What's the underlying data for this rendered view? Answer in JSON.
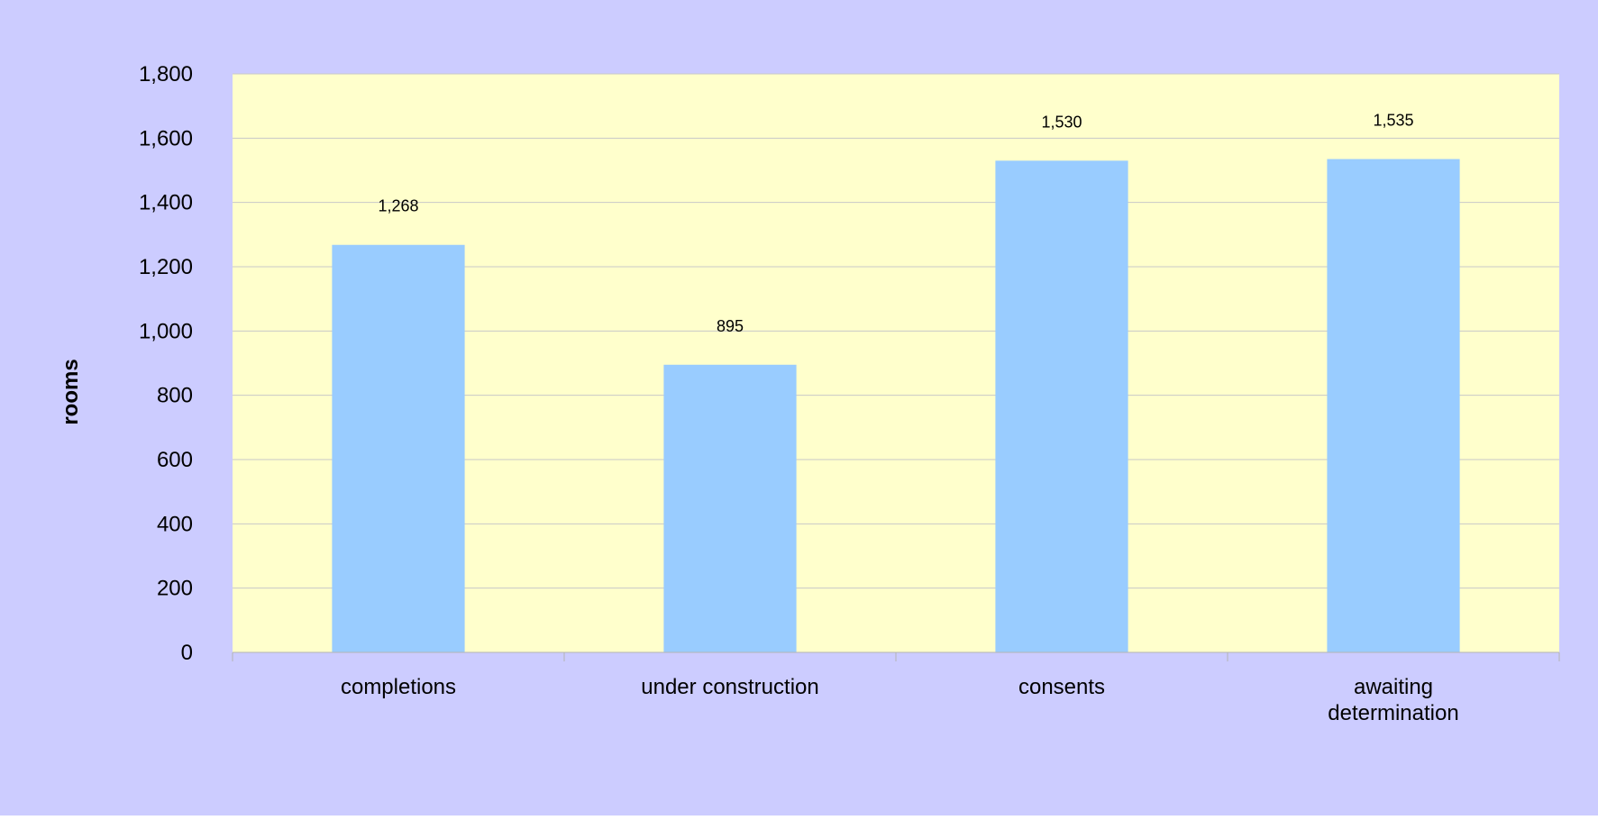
{
  "chart_data": {
    "type": "bar",
    "categories": [
      "completions",
      "under construction",
      "consents",
      "awaiting determination"
    ],
    "values": [
      1268,
      895,
      1530,
      1535
    ],
    "data_labels": [
      "1,268",
      "895",
      "1,530",
      "1,535"
    ],
    "ylabel": "rooms",
    "ylim": [
      0,
      1800
    ],
    "yticks": [
      0,
      200,
      400,
      600,
      800,
      1000,
      1200,
      1400,
      1600,
      1800
    ],
    "ytick_labels": [
      "0",
      "200",
      "400",
      "600",
      "800",
      "1,000",
      "1,200",
      "1,400",
      "1,600",
      "1,800"
    ],
    "grid": true,
    "legend": "none",
    "colors": {
      "outer_background": "#ccccff",
      "plot_background": "#ffffcc",
      "bar_fill": "#99ccff",
      "grid_line": "#c8c8c8",
      "axis_line": "#b3b3b3"
    }
  }
}
